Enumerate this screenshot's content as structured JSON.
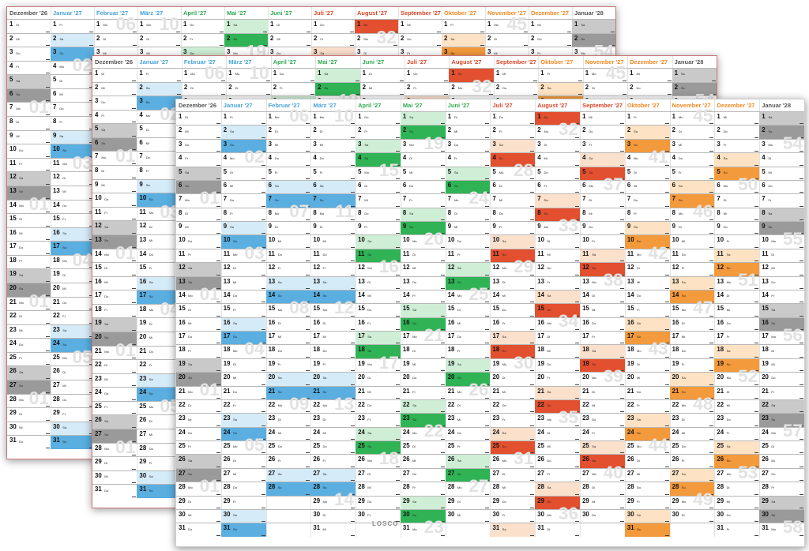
{
  "sheets": [
    {
      "id": "sheet-1",
      "months": [
        {
          "label": "Dezember '26",
          "color": "#555555",
          "wd0": 1
        },
        {
          "label": "Januar '27",
          "color": "#4aa3d8",
          "wd0": 4
        },
        {
          "label": "Februar '27",
          "color": "#4aa3d8",
          "wd0": 0
        },
        {
          "label": "März '27",
          "color": "#4aa3d8",
          "wd0": 0
        },
        {
          "label": "April '27",
          "color": "#2fa84f",
          "wd0": 3
        },
        {
          "label": "Mai '27",
          "color": "#2fa84f",
          "wd0": 5
        },
        {
          "label": "Juni '27",
          "color": "#2fa84f",
          "wd0": 1
        },
        {
          "label": "Juli '27",
          "color": "#d8472a",
          "wd0": 3
        },
        {
          "label": "August '27",
          "color": "#d8472a",
          "wd0": 6
        },
        {
          "label": "September '27",
          "color": "#d8472a",
          "wd0": 2
        },
        {
          "label": "Oktober '27",
          "color": "#f08a24",
          "wd0": 4
        },
        {
          "label": "November '27",
          "color": "#f08a24",
          "wd0": 0
        },
        {
          "label": "Dezember '27",
          "color": "#f08a24",
          "wd0": 2
        },
        {
          "label": "Januar '28",
          "color": "#555555",
          "wd0": 5
        }
      ]
    },
    {
      "id": "sheet-2",
      "months": [
        {
          "label": "Dezember '26",
          "color": "#555555",
          "wd0": 1
        },
        {
          "label": "Januar '27",
          "color": "#4aa3d8",
          "wd0": 4
        },
        {
          "label": "Februar '27",
          "color": "#4aa3d8",
          "wd0": 0
        },
        {
          "label": "März '27",
          "color": "#4aa3d8",
          "wd0": 0
        },
        {
          "label": "April '27",
          "color": "#2fa84f",
          "wd0": 3
        },
        {
          "label": "Mai '27",
          "color": "#2fa84f",
          "wd0": 5
        },
        {
          "label": "Juni '27",
          "color": "#2fa84f",
          "wd0": 1
        },
        {
          "label": "Juli '27",
          "color": "#d8472a",
          "wd0": 3
        },
        {
          "label": "August '27",
          "color": "#d8472a",
          "wd0": 6
        },
        {
          "label": "September '27",
          "color": "#d8472a",
          "wd0": 2
        },
        {
          "label": "Oktober '27",
          "color": "#f08a24",
          "wd0": 4
        },
        {
          "label": "November '27",
          "color": "#f08a24",
          "wd0": 0
        },
        {
          "label": "Dezember '27",
          "color": "#f08a24",
          "wd0": 2
        },
        {
          "label": "Januar '28",
          "color": "#555555",
          "wd0": 5
        }
      ]
    },
    {
      "id": "sheet-3",
      "months": [
        {
          "label": "Dezember '26",
          "color": "#555555",
          "wd0": 1
        },
        {
          "label": "Januar '27",
          "color": "#4aa3d8",
          "wd0": 4
        },
        {
          "label": "Februar '27",
          "color": "#4aa3d8",
          "wd0": 0
        },
        {
          "label": "März '27",
          "color": "#4aa3d8",
          "wd0": 0
        },
        {
          "label": "April '27",
          "color": "#2fa84f",
          "wd0": 3
        },
        {
          "label": "Mai '27",
          "color": "#2fa84f",
          "wd0": 5
        },
        {
          "label": "Juni '27",
          "color": "#2fa84f",
          "wd0": 1
        },
        {
          "label": "Juli '27",
          "color": "#d8472a",
          "wd0": 3
        },
        {
          "label": "August '27",
          "color": "#d8472a",
          "wd0": 6
        },
        {
          "label": "September '27",
          "color": "#d8472a",
          "wd0": 2
        },
        {
          "label": "Oktober '27",
          "color": "#f08a24",
          "wd0": 4
        },
        {
          "label": "November '27",
          "color": "#f08a24",
          "wd0": 0
        },
        {
          "label": "Dezember '27",
          "color": "#f08a24",
          "wd0": 2
        },
        {
          "label": "Januar '28",
          "color": "#555555",
          "wd0": 5
        }
      ]
    }
  ],
  "weekdays": [
    "Mo",
    "Di",
    "Mi",
    "Do",
    "Fr",
    "Sa",
    "So"
  ],
  "day_counts": [
    31,
    31,
    28,
    31,
    30,
    31,
    30,
    31,
    31,
    30,
    31,
    30,
    31,
    31
  ],
  "weekend_tints": {
    "#555555": [
      "#c9c9c9",
      "#9a9a9a"
    ],
    "#4aa3d8": [
      "#d6ebf8",
      "#5aaee0"
    ],
    "#2fa84f": [
      "#cfeed6",
      "#2fb355"
    ],
    "#d8472a": [
      "#fbe0cc",
      "#e2502f"
    ],
    "#f08a24": [
      "#fde2c4",
      "#f39a3c"
    ]
  },
  "logo": "LOSCO"
}
